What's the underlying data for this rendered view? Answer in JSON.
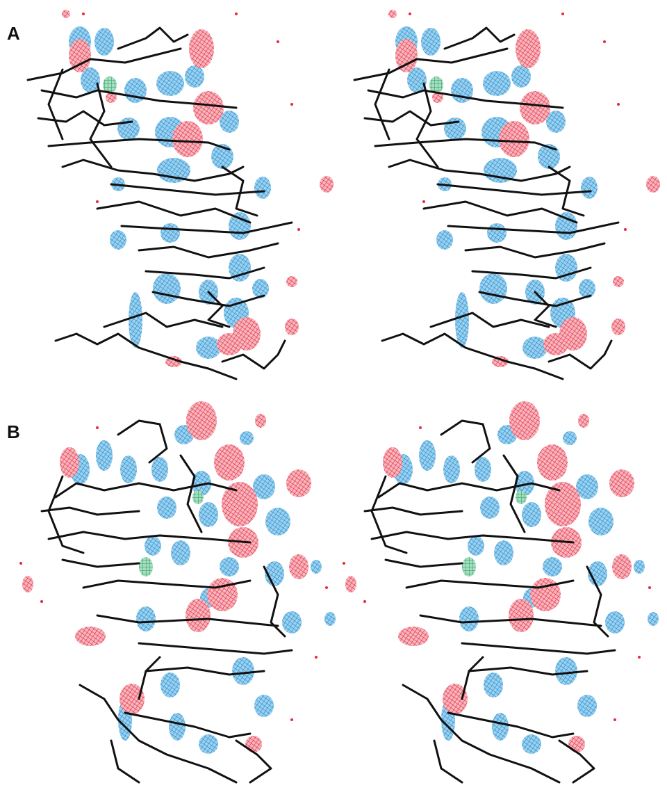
{
  "panels": [
    {
      "label": "A"
    },
    {
      "label": "B"
    }
  ]
}
